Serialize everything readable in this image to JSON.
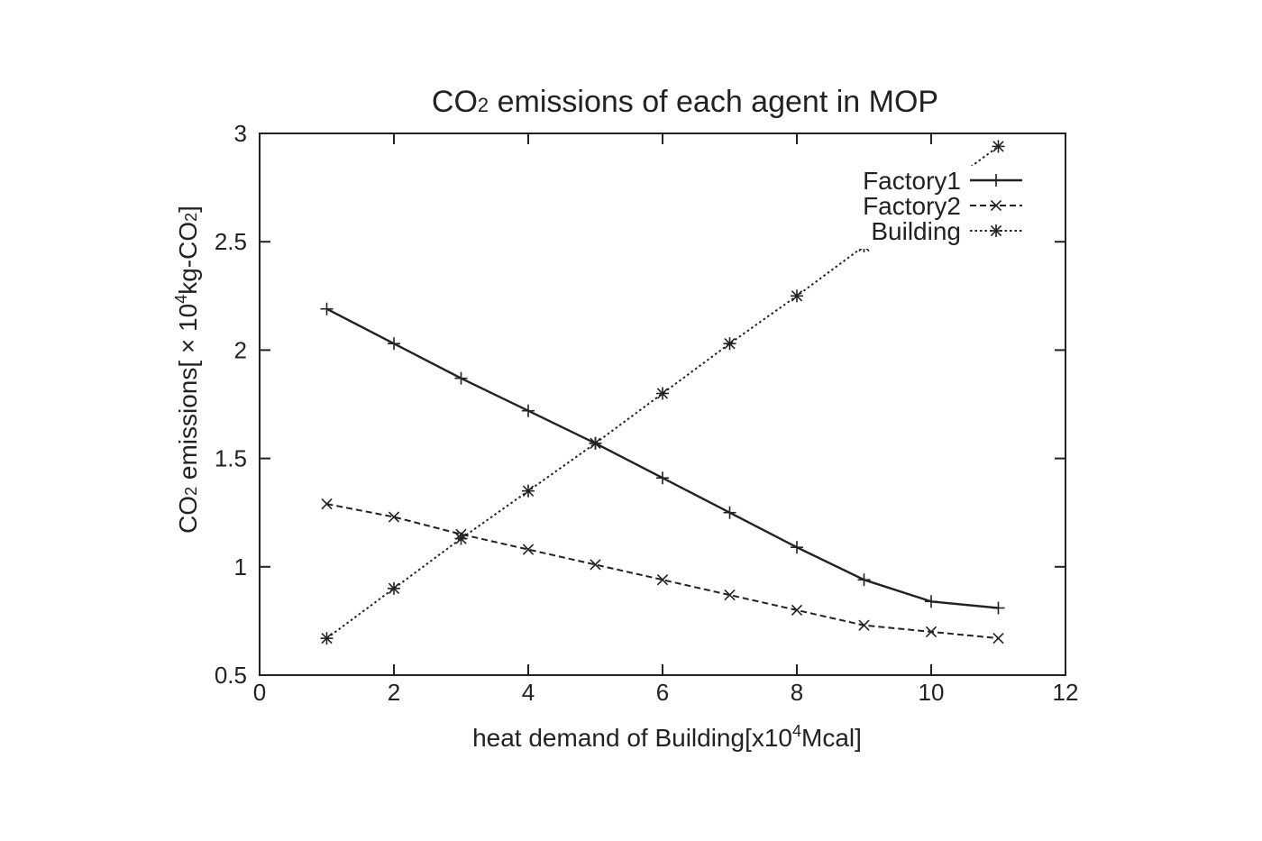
{
  "chart_data": {
    "type": "line",
    "title_parts": {
      "prefix": "CO",
      "sub": "2",
      "suffix": " emissions of each agent in MOP"
    },
    "xlabel_parts": {
      "prefix": "heat demand of Building[x10",
      "sup": "4",
      "suffix": "Mcal]"
    },
    "ylabel_parts": {
      "p1": "CO",
      "sub1": "2",
      "p2": " emissions[ × 10",
      "sup": "4",
      "p3": "kg-CO",
      "sub2": "2",
      "p4": "]"
    },
    "xlim": [
      0,
      12
    ],
    "ylim": [
      0.5,
      3
    ],
    "xticks": [
      "0",
      "2",
      "4",
      "6",
      "8",
      "10",
      "12"
    ],
    "yticks": [
      "0.5",
      "1",
      "1.5",
      "2",
      "2.5",
      "3"
    ],
    "grid": false,
    "legend_position": "top-right",
    "x": [
      1,
      2,
      3,
      4,
      5,
      6,
      7,
      8,
      9,
      10,
      11
    ],
    "series": [
      {
        "name": "Factory1",
        "marker": "plus",
        "dash": "solid",
        "values": [
          2.19,
          2.03,
          1.87,
          1.72,
          1.57,
          1.41,
          1.25,
          1.09,
          0.94,
          0.84,
          0.81
        ]
      },
      {
        "name": "Factory2",
        "marker": "cross",
        "dash": "dashed",
        "values": [
          1.29,
          1.23,
          1.15,
          1.08,
          1.01,
          0.94,
          0.87,
          0.8,
          0.73,
          0.7,
          0.67
        ]
      },
      {
        "name": "Building",
        "marker": "star",
        "dash": "dotted",
        "values": [
          0.67,
          0.9,
          1.13,
          1.35,
          1.57,
          1.8,
          2.03,
          2.25,
          2.48,
          2.71,
          2.94
        ]
      }
    ]
  }
}
